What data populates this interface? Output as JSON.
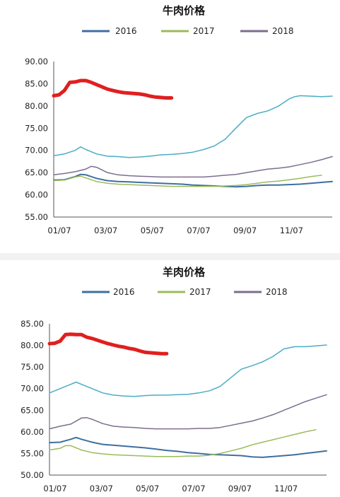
{
  "chart_data": [
    {
      "type": "line",
      "title": "牛肉价格",
      "xlabel": "",
      "ylabel": "",
      "x_tick_labels": [
        "01/07",
        "03/07",
        "05/07",
        "07/07",
        "09/07",
        "11/07"
      ],
      "x_range": [
        0,
        52
      ],
      "ylim": [
        55,
        90
      ],
      "y_ticks": [
        55,
        60,
        65,
        70,
        75,
        80,
        85,
        90
      ],
      "y_tick_labels": [
        "55.00",
        "60.00",
        "65.00",
        "70.00",
        "75.00",
        "80.00",
        "85.00",
        "90.00"
      ],
      "legend_position": "top",
      "series": [
        {
          "name": "2016",
          "color": "#3f6fa0",
          "width": 2,
          "x": [
            0,
            2,
            4,
            5,
            6,
            8,
            10,
            12,
            14,
            16,
            18,
            20,
            22,
            24,
            26,
            28,
            30,
            32,
            34,
            36,
            38,
            40,
            42,
            44,
            46,
            48,
            50,
            52
          ],
          "y": [
            63.3,
            63.4,
            64.1,
            64.6,
            64.5,
            63.7,
            63.2,
            63.0,
            62.9,
            62.8,
            62.7,
            62.6,
            62.5,
            62.4,
            62.2,
            62.1,
            62.0,
            61.9,
            61.8,
            61.9,
            62.1,
            62.2,
            62.2,
            62.3,
            62.4,
            62.6,
            62.8,
            63.0
          ]
        },
        {
          "name": "2017",
          "color": "#9bbb59",
          "width": 1.5,
          "x": [
            0,
            2,
            4,
            5,
            6,
            8,
            10,
            12,
            14,
            16,
            18,
            20,
            22,
            24,
            26,
            28,
            30,
            32,
            34,
            36,
            38,
            40,
            42,
            44,
            46,
            48,
            50
          ],
          "y": [
            63.2,
            63.3,
            64.0,
            64.2,
            63.8,
            63.0,
            62.6,
            62.4,
            62.3,
            62.2,
            62.1,
            62.0,
            61.9,
            61.9,
            61.9,
            61.9,
            61.9,
            62.0,
            62.1,
            62.3,
            62.6,
            62.9,
            63.1,
            63.4,
            63.7,
            64.1,
            64.4
          ]
        },
        {
          "name": "2018",
          "color": "#7c6d8e",
          "width": 1.5,
          "x": [
            0,
            2,
            4,
            6,
            7,
            8,
            10,
            12,
            14,
            16,
            18,
            20,
            22,
            24,
            26,
            28,
            30,
            32,
            34,
            36,
            38,
            40,
            42,
            44,
            46,
            48,
            50,
            52
          ],
          "y": [
            64.5,
            64.8,
            65.2,
            65.8,
            66.4,
            66.2,
            65.0,
            64.5,
            64.3,
            64.2,
            64.1,
            64.0,
            64.0,
            64.0,
            64.0,
            64.0,
            64.2,
            64.4,
            64.6,
            65.0,
            65.4,
            65.8,
            66.0,
            66.3,
            66.8,
            67.3,
            67.9,
            68.6
          ]
        },
        {
          "name": "",
          "color": "#4bacc6",
          "width": 1.5,
          "x": [
            0,
            2,
            4,
            5,
            6,
            8,
            10,
            12,
            14,
            16,
            18,
            20,
            22,
            24,
            26,
            28,
            30,
            32,
            34,
            36,
            38,
            40,
            42,
            44,
            45,
            46,
            48,
            50,
            52
          ],
          "y": [
            68.8,
            69.2,
            70.0,
            70.8,
            70.2,
            69.2,
            68.7,
            68.6,
            68.4,
            68.5,
            68.7,
            69.0,
            69.1,
            69.3,
            69.6,
            70.2,
            71.0,
            72.5,
            75.0,
            77.4,
            78.3,
            78.9,
            80.0,
            81.6,
            82.1,
            82.3,
            82.2,
            82.1,
            82.2
          ]
        },
        {
          "name": "",
          "color": "#e01f1f",
          "width": 5,
          "x": [
            0,
            1,
            2,
            3,
            4,
            5,
            6,
            7,
            8,
            9,
            10,
            11,
            12,
            13,
            14,
            15,
            16,
            17,
            18,
            19,
            20,
            21,
            22
          ],
          "y": [
            82.3,
            82.5,
            83.5,
            85.3,
            85.4,
            85.7,
            85.7,
            85.3,
            84.8,
            84.3,
            83.8,
            83.5,
            83.2,
            83.0,
            82.9,
            82.8,
            82.7,
            82.5,
            82.2,
            82.0,
            81.9,
            81.8,
            81.8
          ]
        }
      ]
    },
    {
      "type": "line",
      "title": "羊肉价格",
      "xlabel": "",
      "ylabel": "",
      "x_tick_labels": [
        "01/07",
        "03/07",
        "05/07",
        "07/07",
        "09/07",
        "11/07"
      ],
      "x_range": [
        0,
        52
      ],
      "ylim": [
        50,
        85
      ],
      "y_ticks": [
        50,
        55,
        60,
        65,
        70,
        75,
        80,
        85
      ],
      "y_tick_labels": [
        "50.00",
        "55.00",
        "60.00",
        "65.00",
        "70.00",
        "75.00",
        "80.00",
        "85.00"
      ],
      "legend_position": "top",
      "series": [
        {
          "name": "2016",
          "color": "#3f6fa0",
          "width": 2,
          "x": [
            0,
            2,
            4,
            5,
            6,
            8,
            10,
            12,
            14,
            16,
            18,
            20,
            22,
            24,
            26,
            28,
            30,
            32,
            34,
            36,
            38,
            40,
            42,
            44,
            46,
            48,
            50,
            52
          ],
          "y": [
            57.5,
            57.6,
            58.3,
            58.7,
            58.3,
            57.6,
            57.1,
            56.9,
            56.7,
            56.5,
            56.3,
            56.0,
            55.7,
            55.5,
            55.2,
            55.0,
            54.8,
            54.7,
            54.6,
            54.5,
            54.2,
            54.1,
            54.3,
            54.5,
            54.7,
            55.0,
            55.3,
            55.6
          ]
        },
        {
          "name": "2017",
          "color": "#9bbb59",
          "width": 1.5,
          "x": [
            0,
            2,
            3,
            4,
            6,
            8,
            10,
            12,
            14,
            16,
            18,
            20,
            22,
            24,
            26,
            28,
            30,
            32,
            34,
            36,
            38,
            40,
            42,
            44,
            46,
            48,
            50
          ],
          "y": [
            55.8,
            56.2,
            56.8,
            56.8,
            55.8,
            55.2,
            54.9,
            54.7,
            54.6,
            54.5,
            54.4,
            54.3,
            54.3,
            54.3,
            54.4,
            54.4,
            54.6,
            55.0,
            55.6,
            56.2,
            57.0,
            57.6,
            58.2,
            58.8,
            59.4,
            60.0,
            60.5
          ]
        },
        {
          "name": "2018",
          "color": "#7c6d8e",
          "width": 1.5,
          "x": [
            0,
            2,
            4,
            6,
            7,
            8,
            10,
            12,
            14,
            16,
            18,
            20,
            22,
            24,
            26,
            28,
            30,
            32,
            34,
            36,
            38,
            40,
            42,
            44,
            46,
            48,
            50,
            52
          ],
          "y": [
            60.7,
            61.3,
            61.8,
            63.2,
            63.3,
            62.9,
            61.9,
            61.3,
            61.1,
            61.0,
            60.8,
            60.7,
            60.7,
            60.7,
            60.7,
            60.8,
            60.8,
            61.0,
            61.5,
            62.0,
            62.5,
            63.2,
            64.0,
            65.0,
            66.0,
            67.0,
            67.8,
            68.6
          ]
        },
        {
          "name": "",
          "color": "#4bacc6",
          "width": 1.5,
          "x": [
            0,
            2,
            4,
            5,
            6,
            8,
            10,
            12,
            14,
            16,
            18,
            20,
            22,
            24,
            26,
            28,
            30,
            32,
            34,
            36,
            38,
            40,
            42,
            44,
            46,
            48,
            50,
            52
          ],
          "y": [
            69.0,
            70.0,
            71.0,
            71.5,
            71.0,
            70.0,
            69.0,
            68.5,
            68.3,
            68.2,
            68.4,
            68.5,
            68.5,
            68.6,
            68.7,
            69.0,
            69.5,
            70.5,
            72.5,
            74.5,
            75.3,
            76.2,
            77.5,
            79.2,
            79.7,
            79.7,
            79.9,
            80.1
          ]
        },
        {
          "name": "",
          "color": "#e01f1f",
          "width": 5,
          "x": [
            0,
            1,
            2,
            3,
            4,
            5,
            6,
            7,
            8,
            9,
            10,
            11,
            12,
            13,
            14,
            15,
            16,
            17,
            18,
            19,
            20,
            21,
            22
          ],
          "y": [
            80.4,
            80.5,
            81.0,
            82.5,
            82.6,
            82.5,
            82.5,
            81.9,
            81.6,
            81.2,
            80.8,
            80.4,
            80.1,
            79.8,
            79.6,
            79.3,
            79.1,
            78.7,
            78.4,
            78.3,
            78.2,
            78.1,
            78.1
          ]
        }
      ]
    }
  ]
}
